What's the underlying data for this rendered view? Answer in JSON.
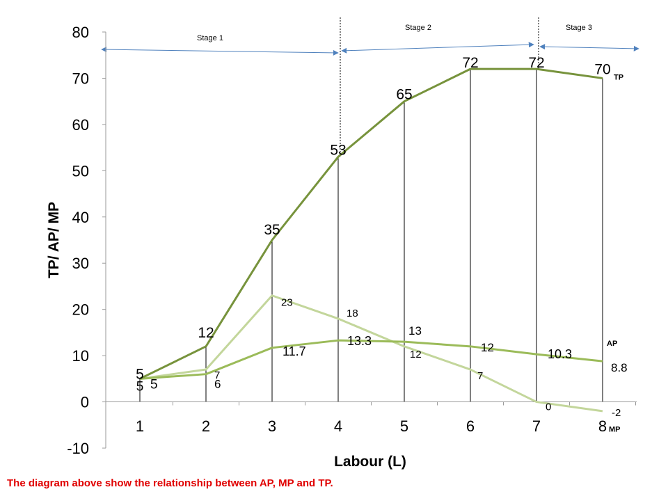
{
  "chart_data": {
    "type": "line",
    "title": "",
    "xlabel": "Labour (L)",
    "ylabel": "TP/ AP/ MP",
    "ylim": [
      -10,
      80
    ],
    "yticks": [
      -10,
      0,
      10,
      20,
      30,
      40,
      50,
      60,
      70,
      80
    ],
    "x": [
      1,
      2,
      3,
      4,
      5,
      6,
      7,
      8
    ],
    "series": [
      {
        "name": "TP",
        "values": [
          5,
          12,
          35,
          53,
          65,
          72,
          72,
          70
        ],
        "labels": [
          "5",
          "12",
          "35",
          "53",
          "65",
          "72",
          "72",
          "70"
        ],
        "color": "#77933c"
      },
      {
        "name": "AP",
        "values": [
          5,
          6,
          11.7,
          13.3,
          13,
          12,
          10.3,
          8.8
        ],
        "labels": [
          "5",
          "6",
          "11.7",
          "13.3",
          "13",
          "12",
          "10.3",
          "8.8"
        ],
        "color": "#9bbb59"
      },
      {
        "name": "MP",
        "values": [
          5,
          7,
          23,
          18,
          12,
          7,
          0,
          -2
        ],
        "labels": [
          "5",
          "7",
          "23",
          "18",
          "12",
          "7",
          "0",
          "-2"
        ],
        "color": "#c3d69b"
      }
    ],
    "stages": [
      {
        "label": "Stage 1",
        "from": 0.5,
        "to": 4
      },
      {
        "label": "Stage 2",
        "from": 4,
        "to": 7
      },
      {
        "label": "Stage 3",
        "from": 7,
        "to": 8.5
      }
    ],
    "grid": false,
    "legend": "none",
    "colors": {
      "arrow": "#4f81bd",
      "guide": "#000000"
    }
  },
  "caption": "The diagram above show the relationship between AP, MP and TP."
}
